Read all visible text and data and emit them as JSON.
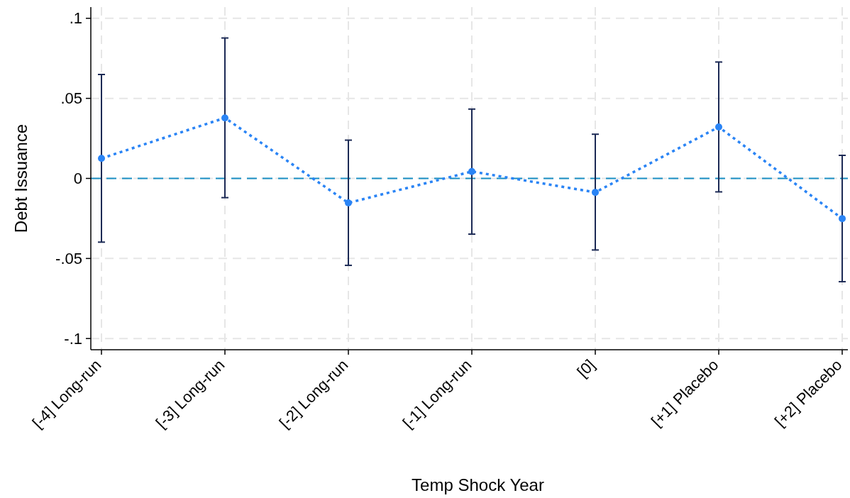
{
  "chart_data": {
    "type": "line",
    "xlabel": "Temp Shock Year",
    "ylabel": "Debt Issuance",
    "categories": [
      "[-4] Long-run",
      "[-3] Long-run",
      "[-2] Long-run",
      "[-1] Long-run",
      "[0]",
      "[+1] Placebo",
      "[+2] Placebo"
    ],
    "series": [
      {
        "color": "#2a84f5",
        "values": [
          0.0125,
          0.0378,
          -0.0153,
          0.0043,
          -0.0087,
          0.0321,
          -0.0251
        ],
        "errors": [
          [
            -0.0398,
            0.0649
          ],
          [
            -0.012,
            0.0877
          ],
          [
            -0.0543,
            0.0239
          ],
          [
            -0.0348,
            0.0433
          ],
          [
            -0.0447,
            0.0276
          ],
          [
            -0.0084,
            0.0727
          ],
          [
            -0.0645,
            0.0144
          ]
        ]
      }
    ],
    "ylim": [
      -0.107,
      0.107
    ],
    "yticks": [
      {
        "value": -0.1,
        "label": "-.1"
      },
      {
        "value": -0.05,
        "label": "-.05"
      },
      0,
      {
        "value": 0.05,
        "label": ".05"
      },
      {
        "value": 0.1,
        "label": ".1"
      }
    ],
    "ref_lines": [
      {
        "axis": "y",
        "value": 0,
        "color": "#1a8fc4",
        "line_style": "dashed"
      }
    ],
    "grid": true,
    "marker": "circle",
    "line_style": "dotted"
  }
}
